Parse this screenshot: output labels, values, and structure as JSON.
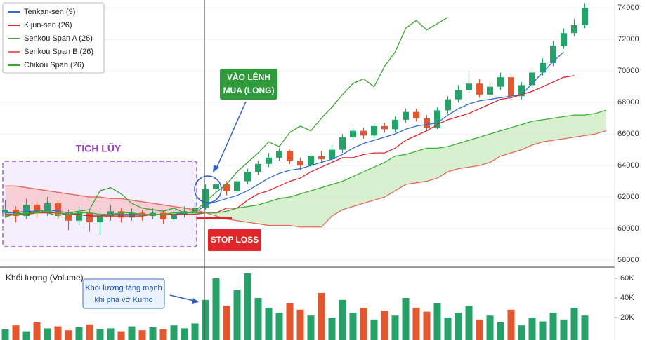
{
  "chart_data": [
    {
      "type": "candlestick",
      "up_color": "#26a269",
      "down_color": "#e4572e",
      "open": [
        61000,
        61200,
        60800,
        61500,
        61000,
        61600,
        60900,
        60500,
        61000,
        60400,
        60800,
        61100,
        60700,
        61000,
        60800,
        61000,
        60600,
        60900,
        61100,
        61300,
        62500,
        62800,
        62400,
        63000,
        63600,
        64100,
        64500,
        64900,
        64300,
        64000,
        64600,
        64400,
        65000,
        65800,
        66200,
        65900,
        66500,
        66300,
        66900,
        67400,
        67000,
        66400,
        67500,
        68200,
        68800,
        69200,
        68500,
        69000,
        69600,
        68400,
        69100,
        69900,
        70500,
        71600,
        72400,
        72900,
        null,
        null
      ],
      "high": [
        61800,
        61400,
        61900,
        61700,
        62000,
        61800,
        61200,
        61400,
        61200,
        61100,
        61500,
        61300,
        61300,
        61200,
        61300,
        61200,
        61200,
        61400,
        61600,
        62800,
        63000,
        63000,
        63300,
        63800,
        64300,
        64800,
        65100,
        65000,
        64500,
        64800,
        64900,
        65300,
        66000,
        66400,
        66400,
        66700,
        66700,
        67100,
        67600,
        67600,
        67200,
        67700,
        68400,
        69100,
        70000,
        69500,
        69300,
        69900,
        69800,
        69300,
        70100,
        70800,
        71900,
        72700,
        73300,
        74300,
        null,
        null
      ],
      "low": [
        60700,
        60400,
        60600,
        60700,
        60800,
        60600,
        59900,
        60200,
        59800,
        59600,
        60500,
        60400,
        60500,
        60500,
        60600,
        60300,
        60400,
        60700,
        60900,
        61200,
        62200,
        62100,
        62200,
        62800,
        63400,
        63900,
        64300,
        64100,
        63700,
        63900,
        64200,
        64200,
        64800,
        65600,
        65700,
        65700,
        66100,
        66100,
        66700,
        66800,
        66200,
        66300,
        67300,
        68000,
        68600,
        68300,
        68300,
        68800,
        68200,
        68200,
        68900,
        69700,
        70300,
        71400,
        72200,
        72700,
        null,
        null
      ],
      "close": [
        61200,
        60800,
        61500,
        61000,
        61600,
        60900,
        60500,
        61000,
        60400,
        60800,
        61100,
        60700,
        61000,
        60800,
        61000,
        60600,
        60900,
        61100,
        61300,
        62500,
        62800,
        62400,
        63000,
        63600,
        64100,
        64500,
        64900,
        64300,
        64000,
        64600,
        64400,
        65000,
        65800,
        66200,
        65900,
        66500,
        66300,
        66900,
        67400,
        67000,
        66400,
        67500,
        68200,
        68800,
        69200,
        68500,
        69000,
        69600,
        68400,
        69100,
        69900,
        70500,
        71600,
        72400,
        72900,
        74000,
        null,
        null
      ],
      "series": [
        {
          "name": "Tenkan-sen (9)",
          "color": "#2f6fd0",
          "values": [
            61000,
            61000,
            61100,
            61100,
            61200,
            61100,
            61000,
            60900,
            60800,
            60800,
            60900,
            60900,
            60900,
            60900,
            60900,
            60900,
            60900,
            61000,
            61000,
            61500,
            61700,
            61900,
            62100,
            62400,
            62800,
            63200,
            63500,
            63700,
            63800,
            64000,
            64200,
            64400,
            64700,
            65100,
            65400,
            65600,
            65800,
            66000,
            66300,
            66500,
            66600,
            66700,
            67200,
            67600,
            67900,
            68100,
            68200,
            68300,
            68400,
            68500,
            69200,
            69900,
            70600,
            71200,
            null,
            null,
            null,
            null
          ]
        },
        {
          "name": "Kijun-sen (26)",
          "color": "#e0262b",
          "values": [
            60900,
            60900,
            60900,
            61000,
            61000,
            61000,
            60900,
            60900,
            60800,
            60800,
            60800,
            60800,
            60800,
            60800,
            60900,
            60900,
            60900,
            60900,
            60900,
            61000,
            61000,
            61300,
            61300,
            61800,
            62200,
            62400,
            62700,
            63000,
            63200,
            63600,
            63900,
            64200,
            64500,
            64500,
            64700,
            64800,
            64800,
            65100,
            65600,
            65900,
            66200,
            66600,
            66900,
            67100,
            67300,
            67600,
            67900,
            68200,
            68300,
            68500,
            68700,
            69000,
            69300,
            69600,
            69700,
            null,
            null,
            null
          ]
        },
        {
          "name": "Senkou Span A (26)",
          "color": "#3cb034",
          "values": [
            60800,
            60900,
            61000,
            61000,
            61100,
            61000,
            60900,
            61000,
            61000,
            60900,
            60900,
            61000,
            61000,
            60900,
            60900,
            60900,
            61000,
            61000,
            61000,
            61000,
            61000,
            61100,
            61300,
            61400,
            61500,
            61700,
            61900,
            62000,
            62200,
            62400,
            62600,
            62800,
            63000,
            63300,
            63600,
            63900,
            64200,
            64600,
            64700,
            64900,
            65100,
            65100,
            65200,
            65400,
            65600,
            65800,
            66000,
            66200,
            66400,
            66600,
            66800,
            66900,
            67000,
            67100,
            67200,
            67200,
            67300,
            67500
          ]
        },
        {
          "name": "Senkou Span B (26)",
          "color": "#e8685a",
          "values": [
            62700,
            62700,
            62600,
            62500,
            62400,
            62300,
            62200,
            62100,
            62000,
            62000,
            61900,
            61900,
            61800,
            61700,
            61600,
            61500,
            61400,
            61300,
            61200,
            61000,
            60800,
            60600,
            60500,
            60400,
            60300,
            60200,
            60200,
            60200,
            60100,
            60100,
            60100,
            60800,
            61200,
            61400,
            61600,
            61800,
            62000,
            62400,
            62800,
            62900,
            63000,
            63200,
            63600,
            63800,
            63900,
            64000,
            64200,
            64600,
            64800,
            65000,
            65300,
            65500,
            65600,
            65700,
            65800,
            65900,
            66000,
            66200
          ]
        },
        {
          "name": "Chikou Span (26)",
          "color": "#3aa52e",
          "values": [
            60700,
            61000,
            60900,
            61200,
            61000,
            60800,
            61000,
            61100,
            61200,
            62400,
            62600,
            62200,
            61600,
            61300,
            61200,
            61100,
            61300,
            61000,
            61100,
            61700,
            62300,
            62800,
            63600,
            64200,
            64800,
            65500,
            65200,
            66100,
            66500,
            66200,
            67000,
            67700,
            68500,
            69200,
            69500,
            69000,
            70300,
            71200,
            72700,
            73200,
            72600,
            73000,
            73400,
            null,
            null,
            null,
            null,
            null,
            null,
            null,
            null,
            null,
            null,
            null,
            null,
            null,
            null,
            null
          ]
        }
      ],
      "ylim": [
        57600,
        74500
      ],
      "yticks": [
        58000,
        60000,
        62000,
        64000,
        66000,
        68000,
        70000,
        72000,
        74000
      ],
      "annotations": [
        [
          "TÍCH LŨY"
        ],
        [
          "VÀO LỆNH",
          "MUA (LONG)"
        ],
        [
          "STOP LOSS"
        ]
      ]
    },
    {
      "type": "bar",
      "title": "Khối lượng (Volume)",
      "values": [
        8000,
        12000,
        6000,
        15000,
        9000,
        11000,
        7000,
        10000,
        13000,
        8000,
        9000,
        6000,
        11000,
        7000,
        10000,
        8000,
        12000,
        9000,
        14000,
        38000,
        60000,
        32000,
        48000,
        65000,
        40000,
        30000,
        25000,
        35000,
        28000,
        22000,
        45000,
        20000,
        38000,
        25000,
        30000,
        18000,
        27000,
        22000,
        40000,
        30000,
        26000,
        35000,
        20000,
        25000,
        32000,
        18000,
        22000,
        15000,
        28000,
        12000,
        20000,
        16000,
        25000,
        18000,
        30000,
        22000
      ],
      "ylim": [
        0,
        70000
      ],
      "yticks": [
        {
          "value": 20000,
          "label": "20K"
        },
        {
          "value": 40000,
          "label": "40K"
        },
        {
          "value": 60000,
          "label": "60K"
        }
      ],
      "annotations": [
        [
          "Khối lượng tăng mạnh",
          "khi phá vỡ Kumo"
        ]
      ]
    }
  ]
}
